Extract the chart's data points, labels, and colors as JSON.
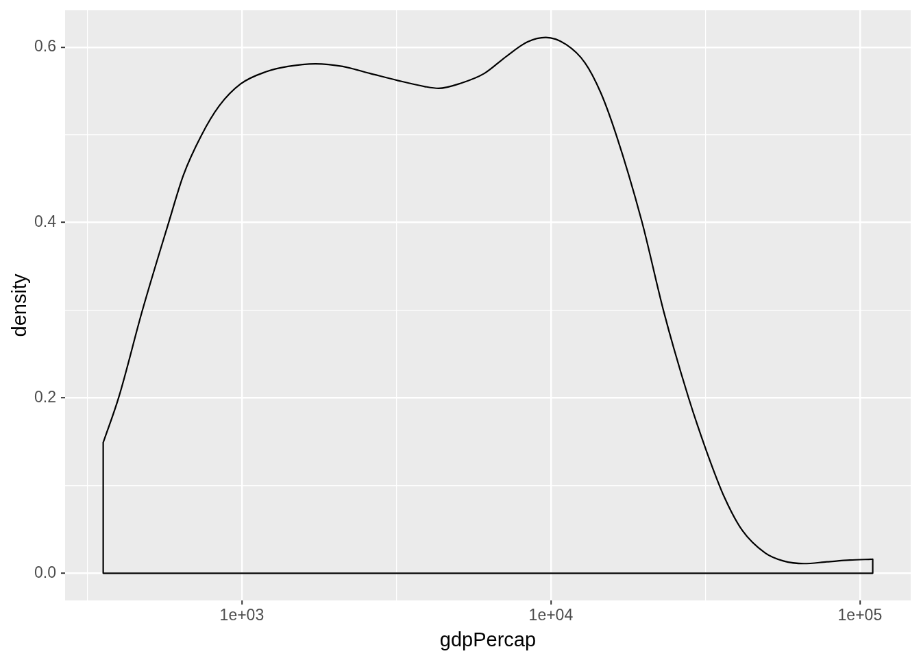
{
  "chart_data": {
    "type": "line",
    "xlabel": "gdpPercap",
    "ylabel": "density",
    "color": "#000000",
    "x": [
      356,
      356,
      400,
      476,
      581,
      647,
      739,
      845,
      991,
      1200,
      1410,
      1730,
      2120,
      2600,
      3190,
      3910,
      4330,
      5130,
      6090,
      7210,
      8410,
      9630,
      11200,
      12900,
      14500,
      16300,
      19700,
      23200,
      27900,
      31900,
      36500,
      41600,
      49400,
      56500,
      65900,
      78200,
      92600,
      110000,
      110000,
      356
    ],
    "values": [
      0,
      0.149,
      0.201,
      0.299,
      0.401,
      0.454,
      0.499,
      0.533,
      0.558,
      0.572,
      0.578,
      0.581,
      0.578,
      0.57,
      0.562,
      0.555,
      0.553,
      0.559,
      0.57,
      0.59,
      0.606,
      0.611,
      0.603,
      0.582,
      0.548,
      0.499,
      0.401,
      0.298,
      0.2,
      0.139,
      0.086,
      0.049,
      0.023,
      0.014,
      0.011,
      0.013,
      0.015,
      0.016,
      0,
      0
    ],
    "log": "x",
    "xlim": [
      268,
      146000
    ],
    "ylim": [
      -0.031,
      0.642
    ],
    "xticks": [
      {
        "value": 316.2,
        "label": null
      },
      {
        "value": 1000,
        "label": "1e+03"
      },
      {
        "value": 3162,
        "label": null
      },
      {
        "value": 10000,
        "label": "1e+04"
      },
      {
        "value": 31620,
        "label": null
      },
      {
        "value": 100000,
        "label": "1e+05"
      }
    ],
    "yticks": [
      {
        "value": 0,
        "label": "0.0"
      },
      {
        "value": 0.1,
        "label": null
      },
      {
        "value": 0.2,
        "label": "0.2"
      },
      {
        "value": 0.3,
        "label": null
      },
      {
        "value": 0.4,
        "label": "0.4"
      },
      {
        "value": 0.5,
        "label": null
      },
      {
        "value": 0.6,
        "label": "0.6"
      }
    ],
    "grid": true
  }
}
